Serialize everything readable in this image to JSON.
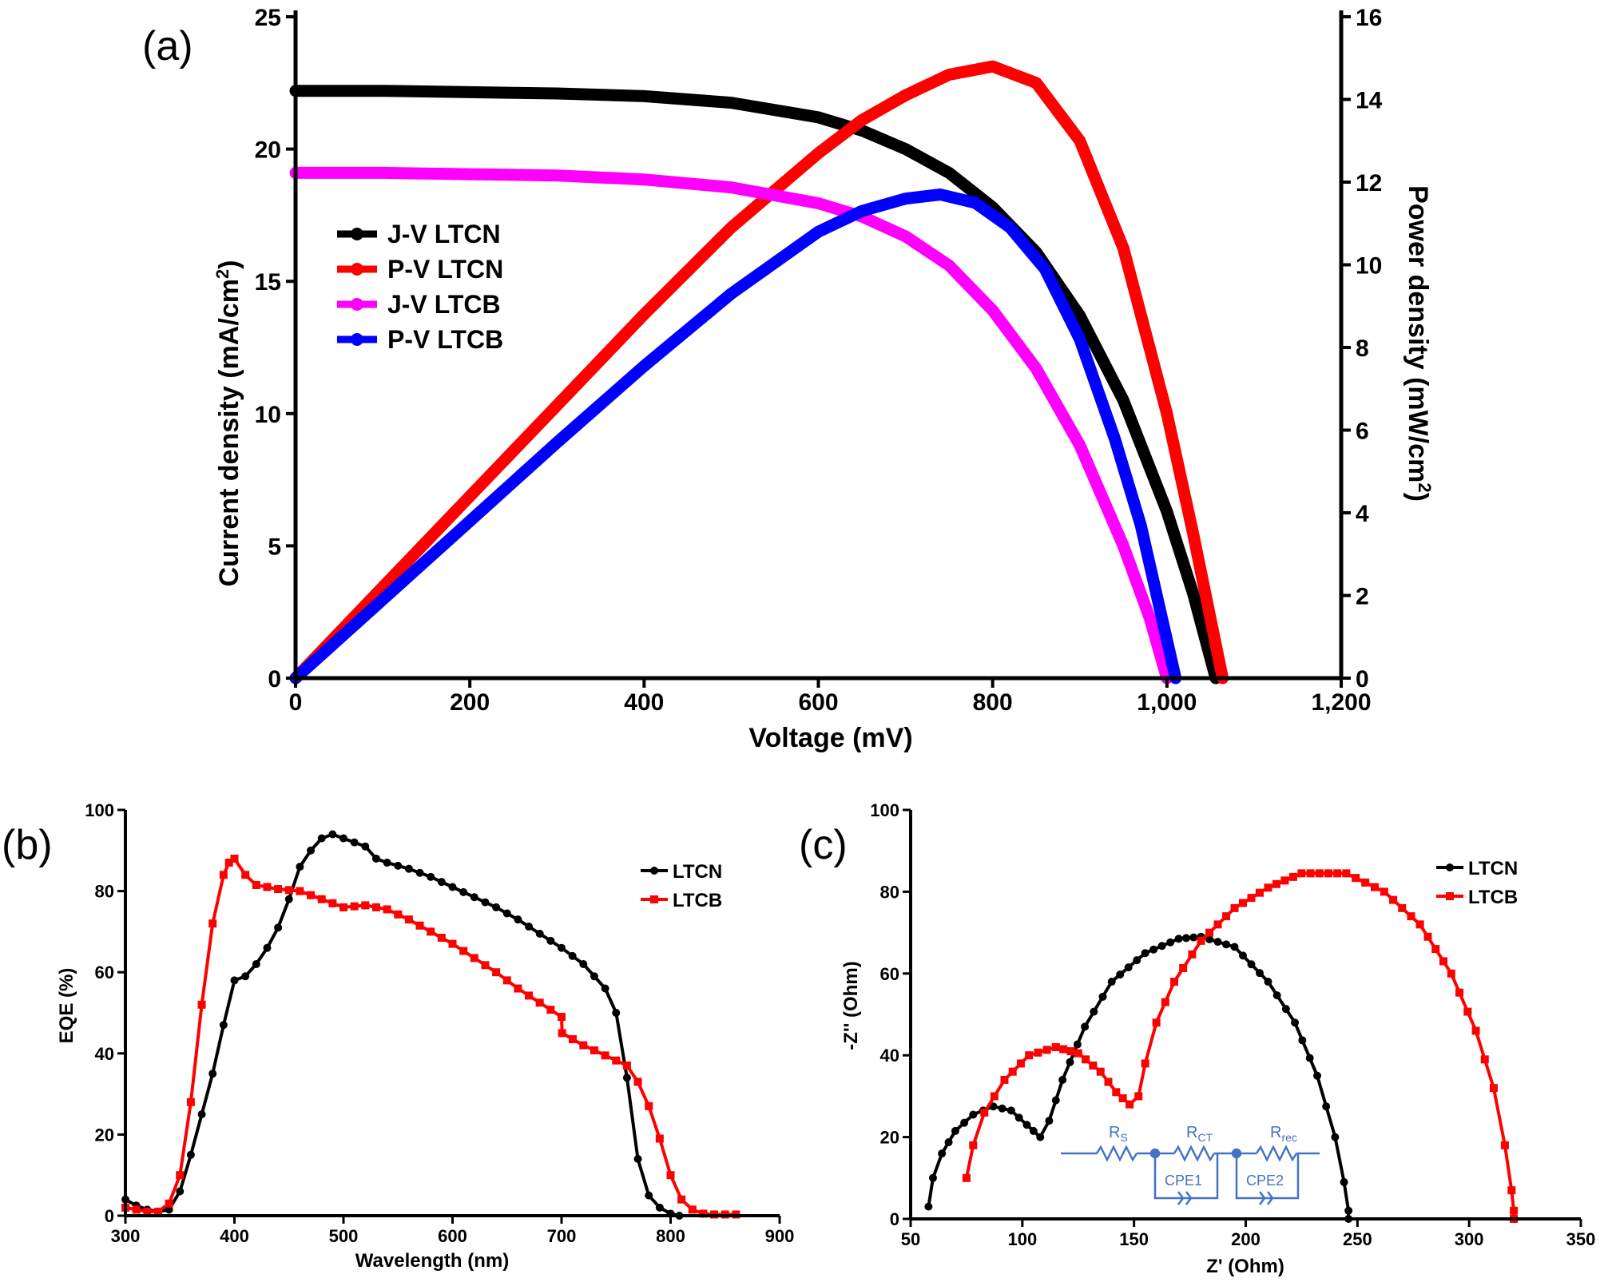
{
  "chart_data": [
    {
      "panel": "(a)",
      "type": "line",
      "xlabel": "Voltage (mV)",
      "ylabel": "Current density (mA/cm",
      "ylabel_sup": "2",
      "ylabel_close": ")",
      "y2label": "Power density (mW/cm",
      "y2label_sup": "2",
      "y2label_close": ")",
      "xlim": [
        0,
        1200
      ],
      "ylim": [
        0,
        25
      ],
      "y2lim": [
        0,
        16
      ],
      "xticks": [
        0,
        200,
        400,
        600,
        800,
        1000,
        1200
      ],
      "xtick_labels": [
        "0",
        "200",
        "400",
        "600",
        "800",
        "1,000",
        "1,200"
      ],
      "yticks": [
        0,
        5,
        10,
        15,
        20,
        25
      ],
      "y2ticks": [
        0,
        2,
        4,
        6,
        8,
        10,
        12,
        14,
        16
      ],
      "legend_position": "upper-left",
      "series": [
        {
          "name": "J-V LTCN",
          "color": "#000000",
          "axis": "left",
          "x": [
            0,
            100,
            200,
            300,
            400,
            500,
            600,
            650,
            700,
            750,
            800,
            850,
            900,
            950,
            1000,
            1030,
            1056
          ],
          "y": [
            22.2,
            22.2,
            22.15,
            22.1,
            22.0,
            21.75,
            21.2,
            20.7,
            20.0,
            19.1,
            17.8,
            16.1,
            13.7,
            10.5,
            6.3,
            3.2,
            0
          ]
        },
        {
          "name": "P-V LTCN",
          "color": "#ff0000",
          "axis": "right",
          "x": [
            0,
            100,
            200,
            300,
            400,
            500,
            600,
            650,
            700,
            750,
            800,
            850,
            900,
            950,
            1000,
            1030,
            1064
          ],
          "y": [
            0,
            2.2,
            4.4,
            6.6,
            8.8,
            10.9,
            12.7,
            13.5,
            14.1,
            14.6,
            14.8,
            14.4,
            13.0,
            10.4,
            6.4,
            3.5,
            0
          ]
        },
        {
          "name": "J-V LTCB",
          "color": "#ff00ff",
          "axis": "left",
          "x": [
            0,
            100,
            200,
            300,
            400,
            500,
            600,
            650,
            700,
            750,
            800,
            850,
            900,
            950,
            980,
            1000
          ],
          "y": [
            19.1,
            19.1,
            19.05,
            19.0,
            18.85,
            18.55,
            17.95,
            17.45,
            16.7,
            15.6,
            13.9,
            11.7,
            8.8,
            5.0,
            2.3,
            0
          ]
        },
        {
          "name": "P-V LTCB",
          "color": "#0000ff",
          "axis": "right",
          "x": [
            0,
            100,
            200,
            300,
            400,
            500,
            600,
            650,
            700,
            740,
            780,
            820,
            860,
            900,
            940,
            970,
            1010
          ],
          "y": [
            0,
            1.9,
            3.8,
            5.7,
            7.55,
            9.3,
            10.8,
            11.3,
            11.6,
            11.7,
            11.5,
            10.9,
            9.9,
            8.2,
            5.8,
            3.7,
            0
          ]
        }
      ]
    },
    {
      "panel": "(b)",
      "type": "line",
      "xlabel": "Wavelength (nm)",
      "ylabel": "EQE (%)",
      "xlim": [
        300,
        900
      ],
      "ylim": [
        0,
        100
      ],
      "xticks": [
        300,
        400,
        500,
        600,
        700,
        800,
        900
      ],
      "yticks": [
        0,
        20,
        40,
        60,
        80,
        100
      ],
      "legend_position": "upper-right",
      "series": [
        {
          "name": "LTCN",
          "color": "#000000",
          "marker": "circle",
          "x": [
            300,
            310,
            320,
            330,
            340,
            350,
            360,
            370,
            380,
            390,
            400,
            410,
            420,
            430,
            440,
            450,
            460,
            470,
            480,
            490,
            500,
            510,
            520,
            530,
            540,
            560,
            580,
            600,
            620,
            640,
            660,
            680,
            700,
            720,
            740,
            750,
            760,
            770,
            780,
            790,
            800,
            808
          ],
          "y": [
            4,
            2.5,
            1.5,
            1,
            1.5,
            6,
            15,
            25,
            35,
            47,
            58,
            59,
            62,
            66,
            71,
            78,
            86,
            90,
            93,
            94,
            93,
            92,
            91,
            88,
            87,
            85.5,
            83.5,
            81,
            78.5,
            76,
            73,
            69.5,
            66,
            62,
            56,
            50,
            34,
            14,
            5,
            2,
            0.5,
            0
          ]
        },
        {
          "name": "LTCB",
          "color": "#ff0000",
          "marker": "square",
          "x": [
            300,
            310,
            320,
            330,
            340,
            350,
            360,
            370,
            380,
            390,
            395,
            400,
            410,
            420,
            440,
            460,
            480,
            500,
            520,
            540,
            560,
            580,
            600,
            620,
            640,
            660,
            680,
            700,
            700.5,
            720,
            740,
            760,
            770,
            780,
            790,
            800,
            810,
            820,
            830,
            840,
            860
          ],
          "y": [
            2,
            1.5,
            1,
            1,
            3,
            10,
            28,
            52,
            72,
            84,
            87,
            88,
            84,
            81.5,
            80.5,
            80,
            78,
            76,
            76.5,
            75.5,
            73,
            70,
            67,
            63.5,
            60,
            56,
            52.5,
            49,
            45,
            42,
            39.5,
            37,
            33,
            27,
            19,
            10,
            4,
            1.5,
            0.5,
            0.3,
            0.3
          ]
        }
      ]
    },
    {
      "panel": "(c)",
      "type": "line",
      "xlabel": "Z' (Ohm)",
      "ylabel": "-Z'' (Ohm)",
      "xlim": [
        50,
        350
      ],
      "ylim": [
        0,
        100
      ],
      "xticks": [
        50,
        100,
        150,
        200,
        250,
        300,
        350
      ],
      "yticks": [
        0,
        20,
        40,
        60,
        80,
        100
      ],
      "legend_position": "upper-right",
      "circuit_labels": {
        "rs": "R",
        "rs_sub": "S",
        "rct": "R",
        "rct_sub": "CT",
        "rrec": "R",
        "rrec_sub": "rec",
        "cpe1": "CPE1",
        "cpe2": "CPE2"
      },
      "series": [
        {
          "name": "LTCN",
          "color": "#000000",
          "marker": "circle",
          "x": [
            58,
            60,
            64,
            70,
            78,
            87,
            95,
            102,
            108,
            112,
            118,
            128,
            140,
            155,
            170,
            180,
            195,
            210,
            222,
            232,
            240,
            244,
            246,
            246
          ],
          "y": [
            3,
            10,
            16,
            21.5,
            25.5,
            27.5,
            26.5,
            23,
            20,
            24,
            34,
            47,
            58,
            65,
            68.5,
            69,
            66.5,
            58,
            48,
            35,
            20,
            9,
            2,
            0
          ]
        },
        {
          "name": "LTCB",
          "color": "#ff0000",
          "marker": "square",
          "x": [
            75,
            78,
            83,
            92,
            103,
            115,
            125,
            135,
            142,
            148,
            152,
            155,
            160,
            168,
            180,
            195,
            210,
            225,
            245,
            262,
            278,
            292,
            303,
            311,
            316,
            319,
            320,
            320
          ],
          "y": [
            10,
            18,
            26,
            34,
            40,
            42,
            40.5,
            36,
            31,
            28,
            30,
            38,
            48,
            58,
            68,
            76,
            81,
            84.5,
            84.5,
            80,
            72,
            60,
            46,
            32,
            18,
            7,
            2,
            0
          ]
        }
      ]
    }
  ]
}
